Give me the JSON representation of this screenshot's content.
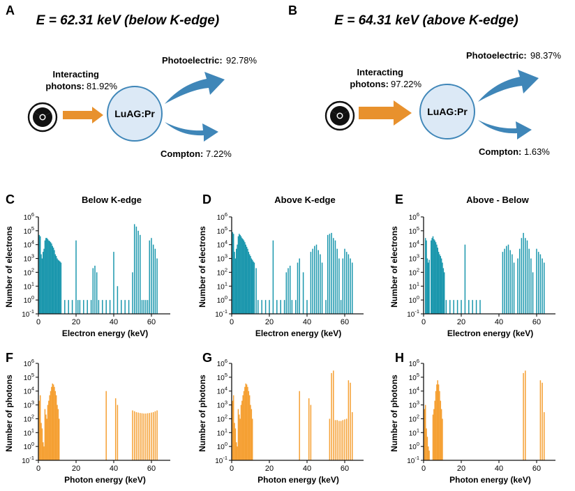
{
  "panel_a": {
    "letter": "A",
    "title": "E = 62.31 keV (below K-edge)",
    "interacting_label": "Interacting",
    "photons_label": "photons:",
    "photons_value": "81.92%",
    "material": "LuAG:Pr",
    "photoelectric_label": "Photoelectric:",
    "photoelectric_value": "92.78%",
    "compton_label": "Compton:",
    "compton_value": "7.22%",
    "colors": {
      "arrow_in": "#e8912d",
      "arrow_out": "#3f86b8",
      "circle_fill": "#dce9f6",
      "circle_stroke": "#3f86b8"
    }
  },
  "panel_b": {
    "letter": "B",
    "title": "E = 64.31 keV (above K-edge)",
    "interacting_label": "Interacting",
    "photons_label": "photons:",
    "photons_value": "97.22%",
    "material": "LuAG:Pr",
    "photoelectric_label": "Photoelectric:",
    "photoelectric_value": "98.37%",
    "compton_label": "Compton:",
    "compton_value": "1.63%",
    "colors": {
      "arrow_in": "#e8912d",
      "arrow_out": "#3f86b8",
      "circle_fill": "#dce9f6",
      "circle_stroke": "#3f86b8"
    }
  },
  "chart_data": [
    {
      "id": "C",
      "letter": "C",
      "type": "bar",
      "title": "Below K-edge",
      "xlabel": "Electron energy (keV)",
      "ylabel": "Number of electrons",
      "xlim": [
        0,
        70
      ],
      "xticks": [
        0,
        20,
        40,
        60
      ],
      "ylim_log10": [
        -1,
        6
      ],
      "yticks": [
        "10-1",
        "100",
        "101",
        "102",
        "103",
        "104",
        "105",
        "106"
      ],
      "color": "#1b97ad",
      "series": [
        {
          "x": [
            0.5,
            1,
            1.5,
            2,
            2.5,
            3,
            3.5,
            4,
            4.5,
            5,
            5.5,
            6,
            6.5,
            7,
            7.5,
            8,
            8.5,
            9,
            9.5,
            10,
            10.5,
            11,
            11.5,
            12,
            14,
            16,
            18,
            20,
            21,
            22,
            24,
            26,
            28,
            29,
            30,
            31,
            32,
            34,
            36,
            38,
            40,
            42,
            44,
            46,
            48,
            50,
            51,
            52,
            53,
            54,
            55,
            56,
            57,
            58,
            59,
            60,
            61,
            62,
            63
          ],
          "y": [
            50000,
            40000,
            2000,
            1000,
            3000,
            5000,
            20000,
            30000,
            30000,
            25000,
            20000,
            18000,
            15000,
            12000,
            8000,
            6000,
            4000,
            2000,
            1500,
            1000,
            800,
            700,
            600,
            500,
            1,
            1,
            1,
            20000,
            1,
            1,
            1,
            1,
            1,
            200,
            300,
            100,
            1,
            1,
            1,
            1,
            3000,
            10,
            1,
            1,
            1,
            100,
            300000,
            200000,
            100000,
            50000,
            1,
            1,
            1,
            1,
            20000,
            30000,
            10000,
            5000,
            1000
          ]
        }
      ]
    },
    {
      "id": "D",
      "letter": "D",
      "type": "bar",
      "title": "Above K-edge",
      "xlabel": "Electron energy (keV)",
      "ylabel": "Number of electrons",
      "xlim": [
        0,
        70
      ],
      "xticks": [
        0,
        20,
        40,
        60
      ],
      "ylim_log10": [
        -1,
        6
      ],
      "yticks": [
        "10-1",
        "100",
        "101",
        "102",
        "103",
        "104",
        "105",
        "106"
      ],
      "color": "#1b97ad",
      "series": [
        {
          "x": [
            0.5,
            1,
            1.5,
            2,
            2.5,
            3,
            3.5,
            4,
            4.5,
            5,
            5.5,
            6,
            6.5,
            7,
            7.5,
            8,
            8.5,
            9,
            9.5,
            10,
            10.5,
            11,
            11.5,
            12,
            13,
            14,
            16,
            18,
            20,
            22,
            24,
            26,
            28,
            29,
            30,
            31,
            32,
            34,
            35,
            36,
            38,
            40,
            42,
            43,
            44,
            45,
            46,
            47,
            48,
            50,
            51,
            52,
            53,
            54,
            55,
            56,
            57,
            58,
            59,
            60,
            61,
            62,
            63,
            64
          ],
          "y": [
            80000,
            60000,
            3000,
            1000,
            5000,
            10000,
            40000,
            60000,
            50000,
            40000,
            30000,
            25000,
            20000,
            15000,
            10000,
            7000,
            5000,
            3000,
            2000,
            1500,
            1000,
            800,
            600,
            500,
            200,
            1,
            1,
            1,
            1,
            20000,
            1,
            1,
            1,
            100,
            200,
            300,
            1,
            1,
            500,
            1000,
            100,
            1,
            3000,
            5000,
            8000,
            10000,
            4000,
            2000,
            500,
            1,
            50000,
            60000,
            70000,
            30000,
            20000,
            5000,
            1000,
            1,
            1000,
            5000,
            3000,
            2000,
            1000,
            500
          ]
        }
      ]
    },
    {
      "id": "E",
      "letter": "E",
      "type": "bar",
      "title": "Above - Below",
      "xlabel": "Electron energy (keV)",
      "ylabel": "Number of electrons",
      "xlim": [
        0,
        70
      ],
      "xticks": [
        0,
        20,
        40,
        60
      ],
      "ylim_log10": [
        -1,
        6
      ],
      "yticks": [
        "10-1",
        "100",
        "101",
        "102",
        "103",
        "104",
        "105",
        "106"
      ],
      "color": "#1b97ad",
      "series": [
        {
          "x": [
            1,
            1.5,
            2,
            2.5,
            3,
            4,
            4.5,
            5,
            5.5,
            6,
            6.5,
            7,
            7.5,
            8,
            8.5,
            9,
            9.5,
            10,
            10.5,
            11,
            12,
            14,
            16,
            18,
            20,
            22,
            24,
            26,
            28,
            30,
            42,
            43,
            44,
            45,
            46,
            47,
            48,
            50,
            51,
            52,
            53,
            54,
            55,
            56,
            57,
            58,
            60,
            61,
            62,
            63,
            64
          ],
          "y": [
            30000,
            20000,
            1000,
            500,
            800,
            20000,
            30000,
            40000,
            25000,
            20000,
            15000,
            10000,
            6000,
            3000,
            2000,
            1500,
            1000,
            500,
            200,
            100,
            1,
            1,
            1,
            1,
            1,
            10000,
            1,
            1,
            1,
            1,
            3000,
            5000,
            8000,
            10000,
            4000,
            2000,
            500,
            1000,
            5000,
            30000,
            70000,
            30000,
            20000,
            5000,
            1000,
            100,
            5000,
            3000,
            2000,
            1000,
            500
          ]
        }
      ]
    },
    {
      "id": "F",
      "letter": "F",
      "type": "bar",
      "title": "",
      "xlabel": "Photon energy (keV)",
      "ylabel": "Number of photons",
      "xlim": [
        0,
        70
      ],
      "xticks": [
        0,
        20,
        40,
        60
      ],
      "ylim_log10": [
        -1,
        6
      ],
      "yticks": [
        "10-1",
        "100",
        "101",
        "102",
        "103",
        "104",
        "105",
        "106"
      ],
      "color": "#f5a033",
      "series": [
        {
          "x": [
            0.5,
            1,
            1.5,
            2,
            2.5,
            3,
            3.5,
            4,
            4.5,
            5,
            5.5,
            6,
            6.5,
            7,
            7.5,
            8,
            8.5,
            9,
            9.5,
            10,
            10.5,
            11,
            36,
            41,
            42,
            50,
            51,
            52,
            53,
            54,
            55,
            56,
            57,
            58,
            59,
            60,
            61,
            62,
            63
          ],
          "y": [
            2000,
            5000,
            50,
            20,
            2,
            1,
            500,
            200,
            100,
            1000,
            2000,
            5000,
            10000,
            20000,
            35000,
            30000,
            20000,
            10000,
            5000,
            1000,
            500,
            100,
            10000,
            3000,
            1000,
            400,
            350,
            300,
            280,
            260,
            250,
            240,
            240,
            250,
            260,
            280,
            300,
            350,
            400
          ]
        }
      ]
    },
    {
      "id": "G",
      "letter": "G",
      "type": "bar",
      "title": "",
      "xlabel": "Photon energy (keV)",
      "ylabel": "Number of photons",
      "xlim": [
        0,
        70
      ],
      "xticks": [
        0,
        20,
        40,
        60
      ],
      "ylim_log10": [
        -1,
        6
      ],
      "yticks": [
        "10-1",
        "100",
        "101",
        "102",
        "103",
        "104",
        "105",
        "106"
      ],
      "color": "#f5a033",
      "series": [
        {
          "x": [
            0.5,
            1,
            1.5,
            2,
            2.5,
            3,
            3.5,
            4,
            4.5,
            5,
            5.5,
            6,
            6.5,
            7,
            7.5,
            8,
            8.5,
            9,
            9.5,
            10,
            10.5,
            11,
            36,
            41,
            42,
            52,
            53,
            54,
            55,
            56,
            57,
            58,
            59,
            60,
            61,
            62,
            63,
            64
          ],
          "y": [
            2000,
            5000,
            50,
            20,
            2,
            1,
            500,
            200,
            100,
            1000,
            2000,
            5000,
            10000,
            20000,
            35000,
            30000,
            20000,
            10000,
            5000,
            1000,
            500,
            100,
            10000,
            3000,
            1000,
            100,
            200000,
            300000,
            80,
            80,
            70,
            70,
            80,
            90,
            100,
            60000,
            40000,
            300
          ]
        }
      ]
    },
    {
      "id": "H",
      "letter": "H",
      "type": "bar",
      "title": "",
      "xlabel": "Photon energy (keV)",
      "ylabel": "Number of photons",
      "xlim": [
        0,
        70
      ],
      "xticks": [
        0,
        20,
        40,
        60
      ],
      "ylim_log10": [
        -1,
        6
      ],
      "yticks": [
        "10-1",
        "100",
        "101",
        "102",
        "103",
        "104",
        "105",
        "106"
      ],
      "color": "#f5a033",
      "series": [
        {
          "x": [
            0.5,
            1,
            1.5,
            2,
            2.5,
            3,
            5,
            5.5,
            6,
            6.5,
            7,
            7.5,
            8,
            8.5,
            9,
            9.5,
            10,
            53,
            54,
            62,
            63,
            64
          ],
          "y": [
            500,
            1000,
            20,
            5,
            1,
            0.5,
            200,
            500,
            2000,
            10000,
            30000,
            60000,
            30000,
            10000,
            2000,
            500,
            100,
            200000,
            300000,
            60000,
            40000,
            300
          ]
        }
      ]
    }
  ]
}
